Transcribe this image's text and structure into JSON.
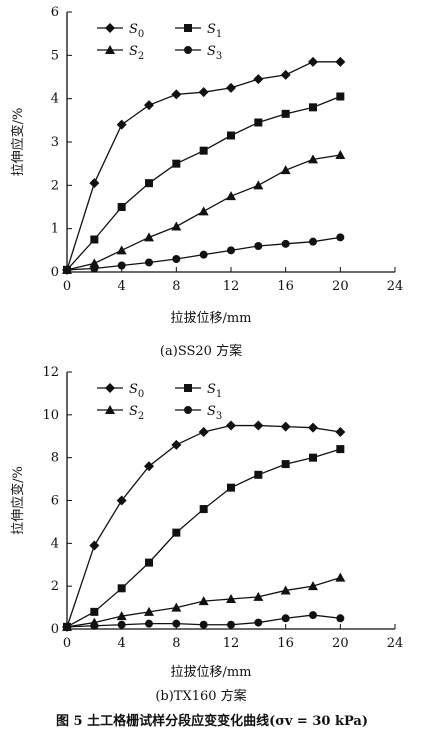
{
  "chart_data": [
    {
      "type": "line",
      "xlabel": "拉拔位移/mm",
      "ylabel": "拉伸应变/%",
      "caption": "(a)SS20 方案",
      "xlim": [
        0,
        24
      ],
      "ylim": [
        0,
        6
      ],
      "xticks": [
        "0",
        "4",
        "8",
        "12",
        "16",
        "20",
        "24"
      ],
      "yticks": [
        "0",
        "1",
        "2",
        "3",
        "4",
        "5",
        "6"
      ],
      "grid": false,
      "legend_position": "top-left",
      "series": [
        {
          "name": "S0",
          "marker": "diamond",
          "x": [
            0,
            2,
            4,
            6,
            8,
            10,
            12,
            14,
            16,
            18,
            20
          ],
          "y": [
            0.05,
            2.05,
            3.4,
            3.85,
            4.1,
            4.15,
            4.25,
            4.45,
            4.55,
            4.85,
            4.85
          ]
        },
        {
          "name": "S1",
          "marker": "square",
          "x": [
            0,
            2,
            4,
            6,
            8,
            10,
            12,
            14,
            16,
            18,
            20
          ],
          "y": [
            0.05,
            0.75,
            1.5,
            2.05,
            2.5,
            2.8,
            3.15,
            3.45,
            3.65,
            3.8,
            4.05
          ]
        },
        {
          "name": "S2",
          "marker": "triangle",
          "x": [
            0,
            2,
            4,
            6,
            8,
            10,
            12,
            14,
            16,
            18,
            20
          ],
          "y": [
            0.05,
            0.2,
            0.5,
            0.8,
            1.05,
            1.4,
            1.75,
            2.0,
            2.35,
            2.6,
            2.7
          ]
        },
        {
          "name": "S3",
          "marker": "circle",
          "x": [
            0,
            2,
            4,
            6,
            8,
            10,
            12,
            14,
            16,
            18,
            20
          ],
          "y": [
            0.05,
            0.08,
            0.15,
            0.22,
            0.3,
            0.4,
            0.5,
            0.6,
            0.65,
            0.7,
            0.8
          ]
        }
      ]
    },
    {
      "type": "line",
      "xlabel": "拉拔位移/mm",
      "ylabel": "拉伸应变/%",
      "caption": "(b)TX160 方案",
      "xlim": [
        0,
        24
      ],
      "ylim": [
        0,
        12
      ],
      "xticks": [
        "0",
        "4",
        "8",
        "12",
        "16",
        "20",
        "24"
      ],
      "yticks": [
        "0",
        "2",
        "4",
        "6",
        "8",
        "10",
        "12"
      ],
      "grid": false,
      "legend_position": "top-left",
      "series": [
        {
          "name": "S0",
          "marker": "diamond",
          "x": [
            0,
            2,
            4,
            6,
            8,
            10,
            12,
            14,
            16,
            18,
            20
          ],
          "y": [
            0.1,
            3.9,
            6.0,
            7.6,
            8.6,
            9.2,
            9.5,
            9.5,
            9.45,
            9.4,
            9.2
          ]
        },
        {
          "name": "S1",
          "marker": "square",
          "x": [
            0,
            2,
            4,
            6,
            8,
            10,
            12,
            14,
            16,
            18,
            20
          ],
          "y": [
            0.1,
            0.8,
            1.9,
            3.1,
            4.5,
            5.6,
            6.6,
            7.2,
            7.7,
            8.0,
            8.4
          ]
        },
        {
          "name": "S2",
          "marker": "triangle",
          "x": [
            0,
            2,
            4,
            6,
            8,
            10,
            12,
            14,
            16,
            18,
            20
          ],
          "y": [
            0.1,
            0.3,
            0.6,
            0.8,
            1.0,
            1.3,
            1.4,
            1.5,
            1.8,
            2.0,
            2.4
          ]
        },
        {
          "name": "S3",
          "marker": "circle",
          "x": [
            0,
            2,
            4,
            6,
            8,
            10,
            12,
            14,
            16,
            18,
            20
          ],
          "y": [
            0.1,
            0.15,
            0.2,
            0.25,
            0.25,
            0.2,
            0.2,
            0.3,
            0.5,
            0.65,
            0.5
          ]
        }
      ]
    }
  ],
  "figure_caption": "图 5   土工格栅试样分段应变变化曲线(σv = 30 kPa)"
}
